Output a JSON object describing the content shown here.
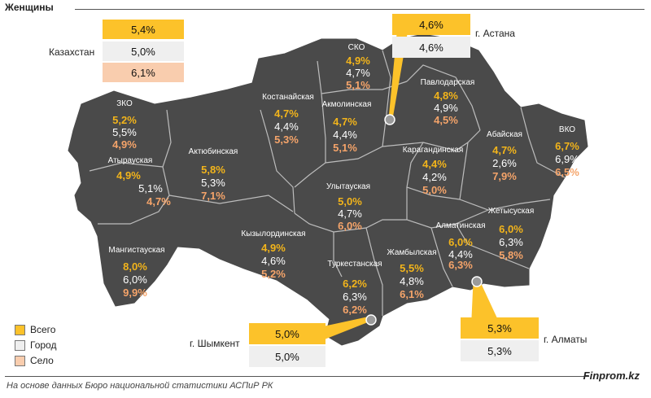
{
  "header": {
    "title": "Женщины"
  },
  "colors": {
    "map_fill": "#4a4a4a",
    "border": "#dddddd",
    "total": "#f2b41b",
    "urban": "#ffffff",
    "rural": "#f5a46a"
  },
  "kazakhstan": {
    "label": "Казахстан",
    "total": "5,4%",
    "urban": "5,0%",
    "rural": "6,1%"
  },
  "regions": {
    "sko": {
      "name": "СКО",
      "total": "4,9%",
      "urban": "4,7%",
      "rural": "5,1%"
    },
    "pavlodar": {
      "name": "Павлодарская",
      "total": "4,8%",
      "urban": "4,9%",
      "rural": "4,5%"
    },
    "kostanay": {
      "name": "Костанайская",
      "total": "4,7%",
      "urban": "4,4%",
      "rural": "5,3%"
    },
    "akmola": {
      "name": "Акмолинская",
      "total": "4,7%",
      "urban": "4,4%",
      "rural": "5,1%"
    },
    "zko": {
      "name": "ЗКО",
      "total": "5,2%",
      "urban": "5,5%",
      "rural": "4,9%"
    },
    "atyrau": {
      "name": "Атырауская",
      "total": "4,9%",
      "urban": "5,1%",
      "rural": "4,7%"
    },
    "aktobe": {
      "name": "Актюбинская",
      "total": "5,8%",
      "urban": "5,3%",
      "rural": "7,1%"
    },
    "karaganda": {
      "name": "Карагандинская",
      "total": "4,4%",
      "urban": "4,2%",
      "rural": "5,0%"
    },
    "abay": {
      "name": "Абайская",
      "total": "4,7%",
      "urban": "2,6%",
      "rural": "7,9%"
    },
    "vko": {
      "name": "ВКО",
      "total": "6,7%",
      "urban": "6,9%",
      "rural": "6,5%"
    },
    "ulytau": {
      "name": "Улытауская",
      "total": "5,0%",
      "urban": "4,7%",
      "rural": "6,0%"
    },
    "zhetysu": {
      "name": "Жетысуская",
      "total": "6,0%",
      "urban": "6,3%",
      "rural": "5,8%"
    },
    "almaty_reg": {
      "name": "Алматинская",
      "total": "6,0%",
      "urban": "4,4%",
      "rural": "6,3%"
    },
    "kyzylorda": {
      "name": "Кызылординская",
      "total": "4,9%",
      "urban": "4,6%",
      "rural": "5,2%"
    },
    "mangystau": {
      "name": "Мангистауская",
      "total": "8,0%",
      "urban": "6,0%",
      "rural": "9,9%"
    },
    "zhambyl": {
      "name": "Жамбылская",
      "total": "5,5%",
      "urban": "4,8%",
      "rural": "6,1%"
    },
    "turkestan": {
      "name": "Туркестанская",
      "total": "6,2%",
      "urban": "6,3%",
      "rural": "6,2%"
    }
  },
  "cities": {
    "astana": {
      "label": "г. Астана",
      "total": "4,6%",
      "urban": "4,6%"
    },
    "shymkent": {
      "label": "г. Шымкент",
      "total": "5,0%",
      "urban": "5,0%"
    },
    "almaty": {
      "label": "г. Алматы",
      "total": "5,3%",
      "urban": "5,3%"
    }
  },
  "legend": {
    "total": "Всего",
    "urban": "Город",
    "rural": "Село"
  },
  "footer": {
    "note": "На основе данных Бюро национальной статистики АСПиР РК",
    "brand": "Finprom.kz"
  }
}
